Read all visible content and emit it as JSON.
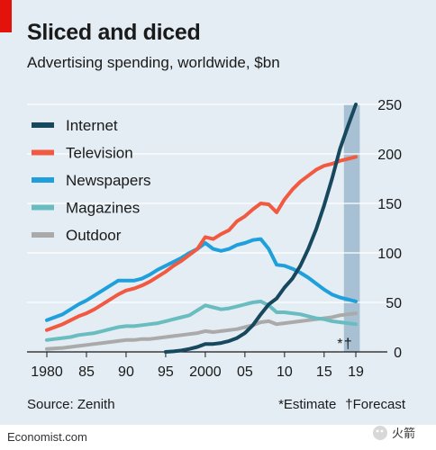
{
  "header": {
    "title": "Sliced and diced",
    "subtitle": "Advertising spending, worldwide, $bn"
  },
  "footer": {
    "source": "Source: Zenith",
    "estimate_note": "*Estimate",
    "forecast_note": "†Forecast",
    "credit": "Economist.com",
    "watermark_text": "火箭"
  },
  "colors": {
    "background": "#e3edf3",
    "shading": "#a8c0d4",
    "internet": "#17485e",
    "television": "#f15a40",
    "newspapers": "#1fa0dc",
    "magazines": "#69bdc0",
    "outdoor": "#aaaaaa",
    "accent": "#e3120b"
  },
  "chart_data": {
    "type": "line",
    "title": "Sliced and diced",
    "subtitle": "Advertising spending, worldwide, $bn",
    "xlim": [
      1980,
      2019
    ],
    "ylim": [
      0,
      250
    ],
    "x_ticks": [
      1980,
      1985,
      1990,
      1995,
      2000,
      2005,
      2010,
      2015,
      2019
    ],
    "x_tick_labels": [
      "1980",
      "85",
      "90",
      "95",
      "2000",
      "05",
      "10",
      "15",
      "19"
    ],
    "y_ticks": [
      0,
      50,
      100,
      150,
      200,
      250
    ],
    "y_tick_labels": [
      "0",
      "50",
      "100",
      "150",
      "200",
      "250"
    ],
    "y_axis_side": "right",
    "grid": "horizontal",
    "legend_position": "top-left",
    "shaded_band": {
      "from": 2017.5,
      "to": 2019.5,
      "label": "estimate and forecast"
    },
    "markers": [
      {
        "year": 2017,
        "symbol": "*"
      },
      {
        "year": 2018,
        "symbol": "†"
      }
    ],
    "series": [
      {
        "name": "Internet",
        "color_key": "internet",
        "points": [
          [
            1995,
            0
          ],
          [
            1996,
            0.5
          ],
          [
            1997,
            1.5
          ],
          [
            1998,
            3
          ],
          [
            1999,
            5
          ],
          [
            2000,
            8
          ],
          [
            2001,
            8
          ],
          [
            2002,
            9
          ],
          [
            2003,
            11
          ],
          [
            2004,
            14
          ],
          [
            2005,
            19
          ],
          [
            2006,
            27
          ],
          [
            2007,
            38
          ],
          [
            2008,
            48
          ],
          [
            2009,
            54
          ],
          [
            2010,
            65
          ],
          [
            2011,
            74
          ],
          [
            2012,
            87
          ],
          [
            2013,
            104
          ],
          [
            2014,
            124
          ],
          [
            2015,
            148
          ],
          [
            2016,
            175
          ],
          [
            2017,
            205
          ],
          [
            2018,
            228
          ],
          [
            2019,
            250
          ]
        ]
      },
      {
        "name": "Television",
        "color_key": "television",
        "points": [
          [
            1980,
            22
          ],
          [
            1981,
            25
          ],
          [
            1982,
            28
          ],
          [
            1983,
            32
          ],
          [
            1984,
            36
          ],
          [
            1985,
            39
          ],
          [
            1986,
            43
          ],
          [
            1987,
            48
          ],
          [
            1988,
            53
          ],
          [
            1989,
            58
          ],
          [
            1990,
            62
          ],
          [
            1991,
            64
          ],
          [
            1992,
            67
          ],
          [
            1993,
            71
          ],
          [
            1994,
            76
          ],
          [
            1995,
            81
          ],
          [
            1996,
            87
          ],
          [
            1997,
            92
          ],
          [
            1998,
            98
          ],
          [
            1999,
            104
          ],
          [
            2000,
            116
          ],
          [
            2001,
            114
          ],
          [
            2002,
            119
          ],
          [
            2003,
            123
          ],
          [
            2004,
            132
          ],
          [
            2005,
            137
          ],
          [
            2006,
            144
          ],
          [
            2007,
            150
          ],
          [
            2008,
            149
          ],
          [
            2009,
            141
          ],
          [
            2010,
            154
          ],
          [
            2011,
            164
          ],
          [
            2012,
            172
          ],
          [
            2013,
            178
          ],
          [
            2014,
            184
          ],
          [
            2015,
            188
          ],
          [
            2016,
            190
          ],
          [
            2017,
            193
          ],
          [
            2018,
            195
          ],
          [
            2019,
            197
          ]
        ]
      },
      {
        "name": "Newspapers",
        "color_key": "newspapers",
        "points": [
          [
            1980,
            32
          ],
          [
            1981,
            35
          ],
          [
            1982,
            38
          ],
          [
            1983,
            43
          ],
          [
            1984,
            48
          ],
          [
            1985,
            52
          ],
          [
            1986,
            57
          ],
          [
            1987,
            62
          ],
          [
            1988,
            67
          ],
          [
            1989,
            72
          ],
          [
            1990,
            72
          ],
          [
            1991,
            72
          ],
          [
            1992,
            74
          ],
          [
            1993,
            78
          ],
          [
            1994,
            83
          ],
          [
            1995,
            87
          ],
          [
            1996,
            91
          ],
          [
            1997,
            95
          ],
          [
            1998,
            100
          ],
          [
            1999,
            104
          ],
          [
            2000,
            110
          ],
          [
            2001,
            104
          ],
          [
            2002,
            102
          ],
          [
            2003,
            104
          ],
          [
            2004,
            108
          ],
          [
            2005,
            110
          ],
          [
            2006,
            113
          ],
          [
            2007,
            114
          ],
          [
            2008,
            104
          ],
          [
            2009,
            88
          ],
          [
            2010,
            87
          ],
          [
            2011,
            84
          ],
          [
            2012,
            80
          ],
          [
            2013,
            75
          ],
          [
            2014,
            69
          ],
          [
            2015,
            63
          ],
          [
            2016,
            58
          ],
          [
            2017,
            55
          ],
          [
            2018,
            53
          ],
          [
            2019,
            51
          ]
        ]
      },
      {
        "name": "Magazines",
        "color_key": "magazines",
        "points": [
          [
            1980,
            12
          ],
          [
            1981,
            13
          ],
          [
            1982,
            14
          ],
          [
            1983,
            15
          ],
          [
            1984,
            17
          ],
          [
            1985,
            18
          ],
          [
            1986,
            19
          ],
          [
            1987,
            21
          ],
          [
            1988,
            23
          ],
          [
            1989,
            25
          ],
          [
            1990,
            26
          ],
          [
            1991,
            26
          ],
          [
            1992,
            27
          ],
          [
            1993,
            28
          ],
          [
            1994,
            29
          ],
          [
            1995,
            31
          ],
          [
            1996,
            33
          ],
          [
            1997,
            35
          ],
          [
            1998,
            37
          ],
          [
            1999,
            42
          ],
          [
            2000,
            47
          ],
          [
            2001,
            45
          ],
          [
            2002,
            43
          ],
          [
            2003,
            44
          ],
          [
            2004,
            46
          ],
          [
            2005,
            48
          ],
          [
            2006,
            50
          ],
          [
            2007,
            51
          ],
          [
            2008,
            47
          ],
          [
            2009,
            40
          ],
          [
            2010,
            40
          ],
          [
            2011,
            39
          ],
          [
            2012,
            38
          ],
          [
            2013,
            36
          ],
          [
            2014,
            34
          ],
          [
            2015,
            33
          ],
          [
            2016,
            31
          ],
          [
            2017,
            30
          ],
          [
            2018,
            29
          ],
          [
            2019,
            28
          ]
        ]
      },
      {
        "name": "Outdoor",
        "color_key": "outdoor",
        "points": [
          [
            1980,
            3
          ],
          [
            1981,
            3.5
          ],
          [
            1982,
            4
          ],
          [
            1983,
            5
          ],
          [
            1984,
            6
          ],
          [
            1985,
            7
          ],
          [
            1986,
            8
          ],
          [
            1987,
            9
          ],
          [
            1988,
            10
          ],
          [
            1989,
            11
          ],
          [
            1990,
            12
          ],
          [
            1991,
            12
          ],
          [
            1992,
            13
          ],
          [
            1993,
            13
          ],
          [
            1994,
            14
          ],
          [
            1995,
            15
          ],
          [
            1996,
            16
          ],
          [
            1997,
            17
          ],
          [
            1998,
            18
          ],
          [
            1999,
            19
          ],
          [
            2000,
            21
          ],
          [
            2001,
            20
          ],
          [
            2002,
            21
          ],
          [
            2003,
            22
          ],
          [
            2004,
            23
          ],
          [
            2005,
            25
          ],
          [
            2006,
            27
          ],
          [
            2007,
            30
          ],
          [
            2008,
            31
          ],
          [
            2009,
            28
          ],
          [
            2010,
            29
          ],
          [
            2011,
            30
          ],
          [
            2012,
            31
          ],
          [
            2013,
            32
          ],
          [
            2014,
            33
          ],
          [
            2015,
            34
          ],
          [
            2016,
            35
          ],
          [
            2017,
            37
          ],
          [
            2018,
            38
          ],
          [
            2019,
            39
          ]
        ]
      }
    ]
  }
}
